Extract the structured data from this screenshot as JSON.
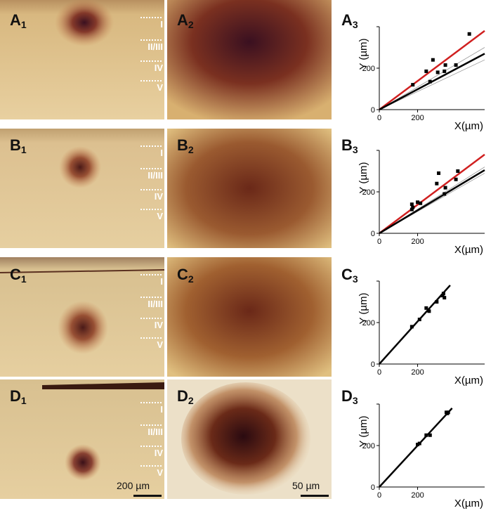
{
  "panels": {
    "A1": {
      "letter": "A",
      "num": "1"
    },
    "A2": {
      "letter": "A",
      "num": "2"
    },
    "A3": {
      "letter": "A",
      "num": "3"
    },
    "B1": {
      "letter": "B",
      "num": "1"
    },
    "B2": {
      "letter": "B",
      "num": "2"
    },
    "B3": {
      "letter": "B",
      "num": "3"
    },
    "C1": {
      "letter": "C",
      "num": "1"
    },
    "C2": {
      "letter": "C",
      "num": "2"
    },
    "C3": {
      "letter": "C",
      "num": "3"
    },
    "D1": {
      "letter": "D",
      "num": "1"
    },
    "D2": {
      "letter": "D",
      "num": "2"
    },
    "D3": {
      "letter": "D",
      "num": "3"
    }
  },
  "layers": [
    "I",
    "II/III",
    "IV",
    "V"
  ],
  "scalebars": {
    "col1": "200 µm",
    "col2": "50 µm"
  },
  "colors": {
    "tissue": "#e7cd9c",
    "stain": "#6b2a1a",
    "red_line": "#d02020",
    "fit_line": "#000000"
  },
  "chart_data": [
    {
      "type": "scatter",
      "panel": "A3",
      "xlabel": "X(µm)",
      "ylabel": "Y (µm)",
      "xlim": [
        0,
        550
      ],
      "ylim": [
        0,
        400
      ],
      "xticks": [
        0,
        200
      ],
      "yticks": [
        0,
        200
      ],
      "points": [
        [
          175,
          120
        ],
        [
          245,
          185
        ],
        [
          265,
          135
        ],
        [
          280,
          240
        ],
        [
          305,
          180
        ],
        [
          340,
          185
        ],
        [
          345,
          215
        ],
        [
          400,
          215
        ],
        [
          470,
          365
        ]
      ],
      "red_line": [
        [
          0,
          0
        ],
        [
          550,
          380
        ]
      ],
      "fit_line": [
        [
          0,
          0
        ],
        [
          550,
          270
        ]
      ],
      "ci_lines": [
        [
          [
            0,
            0
          ],
          [
            550,
            300
          ]
        ],
        [
          [
            0,
            0
          ],
          [
            550,
            240
          ]
        ]
      ]
    },
    {
      "type": "scatter",
      "panel": "B3",
      "xlabel": "X(µm)",
      "ylabel": "Y (µm)",
      "xlim": [
        0,
        550
      ],
      "ylim": [
        0,
        400
      ],
      "xticks": [
        0,
        200
      ],
      "yticks": [
        0,
        200
      ],
      "points": [
        [
          170,
          140
        ],
        [
          170,
          115
        ],
        [
          175,
          125
        ],
        [
          200,
          150
        ],
        [
          215,
          145
        ],
        [
          300,
          240
        ],
        [
          310,
          290
        ],
        [
          340,
          190
        ],
        [
          345,
          220
        ],
        [
          400,
          260
        ],
        [
          410,
          300
        ]
      ],
      "red_line": [
        [
          0,
          0
        ],
        [
          550,
          380
        ]
      ],
      "fit_line": [
        [
          0,
          0
        ],
        [
          550,
          305
        ]
      ],
      "ci_lines": [
        [
          [
            0,
            0
          ],
          [
            550,
            320
          ]
        ],
        [
          [
            0,
            0
          ],
          [
            550,
            290
          ]
        ]
      ]
    },
    {
      "type": "scatter",
      "panel": "C3",
      "xlabel": "X(µm)",
      "ylabel": "Y (µm)",
      "xlim": [
        0,
        550
      ],
      "ylim": [
        0,
        400
      ],
      "xticks": [
        0,
        200
      ],
      "yticks": [
        0,
        200
      ],
      "points": [
        [
          170,
          180
        ],
        [
          210,
          215
        ],
        [
          245,
          270
        ],
        [
          260,
          255
        ],
        [
          300,
          300
        ],
        [
          330,
          330
        ],
        [
          335,
          340
        ],
        [
          340,
          320
        ]
      ],
      "fit_line": [
        [
          0,
          0
        ],
        [
          370,
          380
        ]
      ]
    },
    {
      "type": "scatter",
      "panel": "D3",
      "xlabel": "X(µm)",
      "ylabel": "Y (µm)",
      "xlim": [
        0,
        550
      ],
      "ylim": [
        0,
        400
      ],
      "xticks": [
        0,
        200
      ],
      "yticks": [
        0,
        200
      ],
      "points": [
        [
          200,
          205
        ],
        [
          210,
          210
        ],
        [
          245,
          250
        ],
        [
          265,
          250
        ],
        [
          350,
          360
        ],
        [
          355,
          355
        ],
        [
          360,
          360
        ]
      ],
      "fit_line": [
        [
          0,
          0
        ],
        [
          380,
          380
        ]
      ]
    }
  ]
}
